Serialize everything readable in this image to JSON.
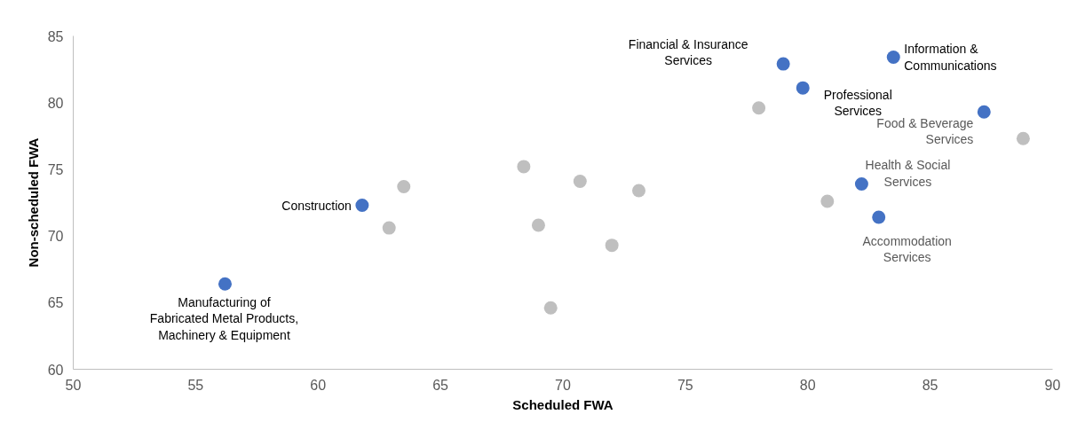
{
  "chart_data": {
    "type": "scatter",
    "xlabel": "Scheduled FWA",
    "ylabel": "Non-scheduled FWA",
    "series": [
      {
        "color": "#bfbfbf",
        "x": [
          78.0,
          88.8,
          68.4,
          70.7,
          63.5,
          73.1,
          80.8,
          62.9,
          69.0,
          72.0,
          69.5
        ],
        "values": [
          79.6,
          77.3,
          75.2,
          74.1,
          73.7,
          73.4,
          72.6,
          70.6,
          70.8,
          69.3,
          64.6
        ]
      },
      {
        "color": "#4472c4",
        "x": [
          56.2,
          61.8,
          79.0,
          83.5,
          79.8,
          87.2,
          82.2,
          82.9
        ],
        "values": [
          66.4,
          72.3,
          82.9,
          83.4,
          81.1,
          79.3,
          73.9,
          71.4
        ]
      }
    ],
    "annotations": [
      {
        "text": "Manufacturing of\nFabricated Metal Products,\nMachinery & Equipment",
        "x": 56.2,
        "y": 66.4
      },
      {
        "text": "Construction",
        "x": 61.8,
        "y": 72.3
      },
      {
        "text": "Financial & Insurance\nServices",
        "x": 79.0,
        "y": 82.9
      },
      {
        "text": "Information &\nCommunications",
        "x": 83.5,
        "y": 83.4
      },
      {
        "text": "Professional\nServices",
        "x": 79.8,
        "y": 81.1
      },
      {
        "text": "Food & Beverage\nServices",
        "x": 87.2,
        "y": 79.3
      },
      {
        "text": "Health & Social\nServices",
        "x": 82.2,
        "y": 73.9
      },
      {
        "text": "Accommodation\nServices",
        "x": 82.9,
        "y": 71.4
      }
    ],
    "xlim": [
      50,
      90
    ],
    "xticks": [
      50,
      55,
      60,
      65,
      70,
      75,
      80,
      85,
      90
    ],
    "ylim": [
      60,
      85
    ],
    "yticks": [
      60,
      65,
      70,
      75,
      80,
      85
    ],
    "grid": false,
    "marker": "circle"
  }
}
